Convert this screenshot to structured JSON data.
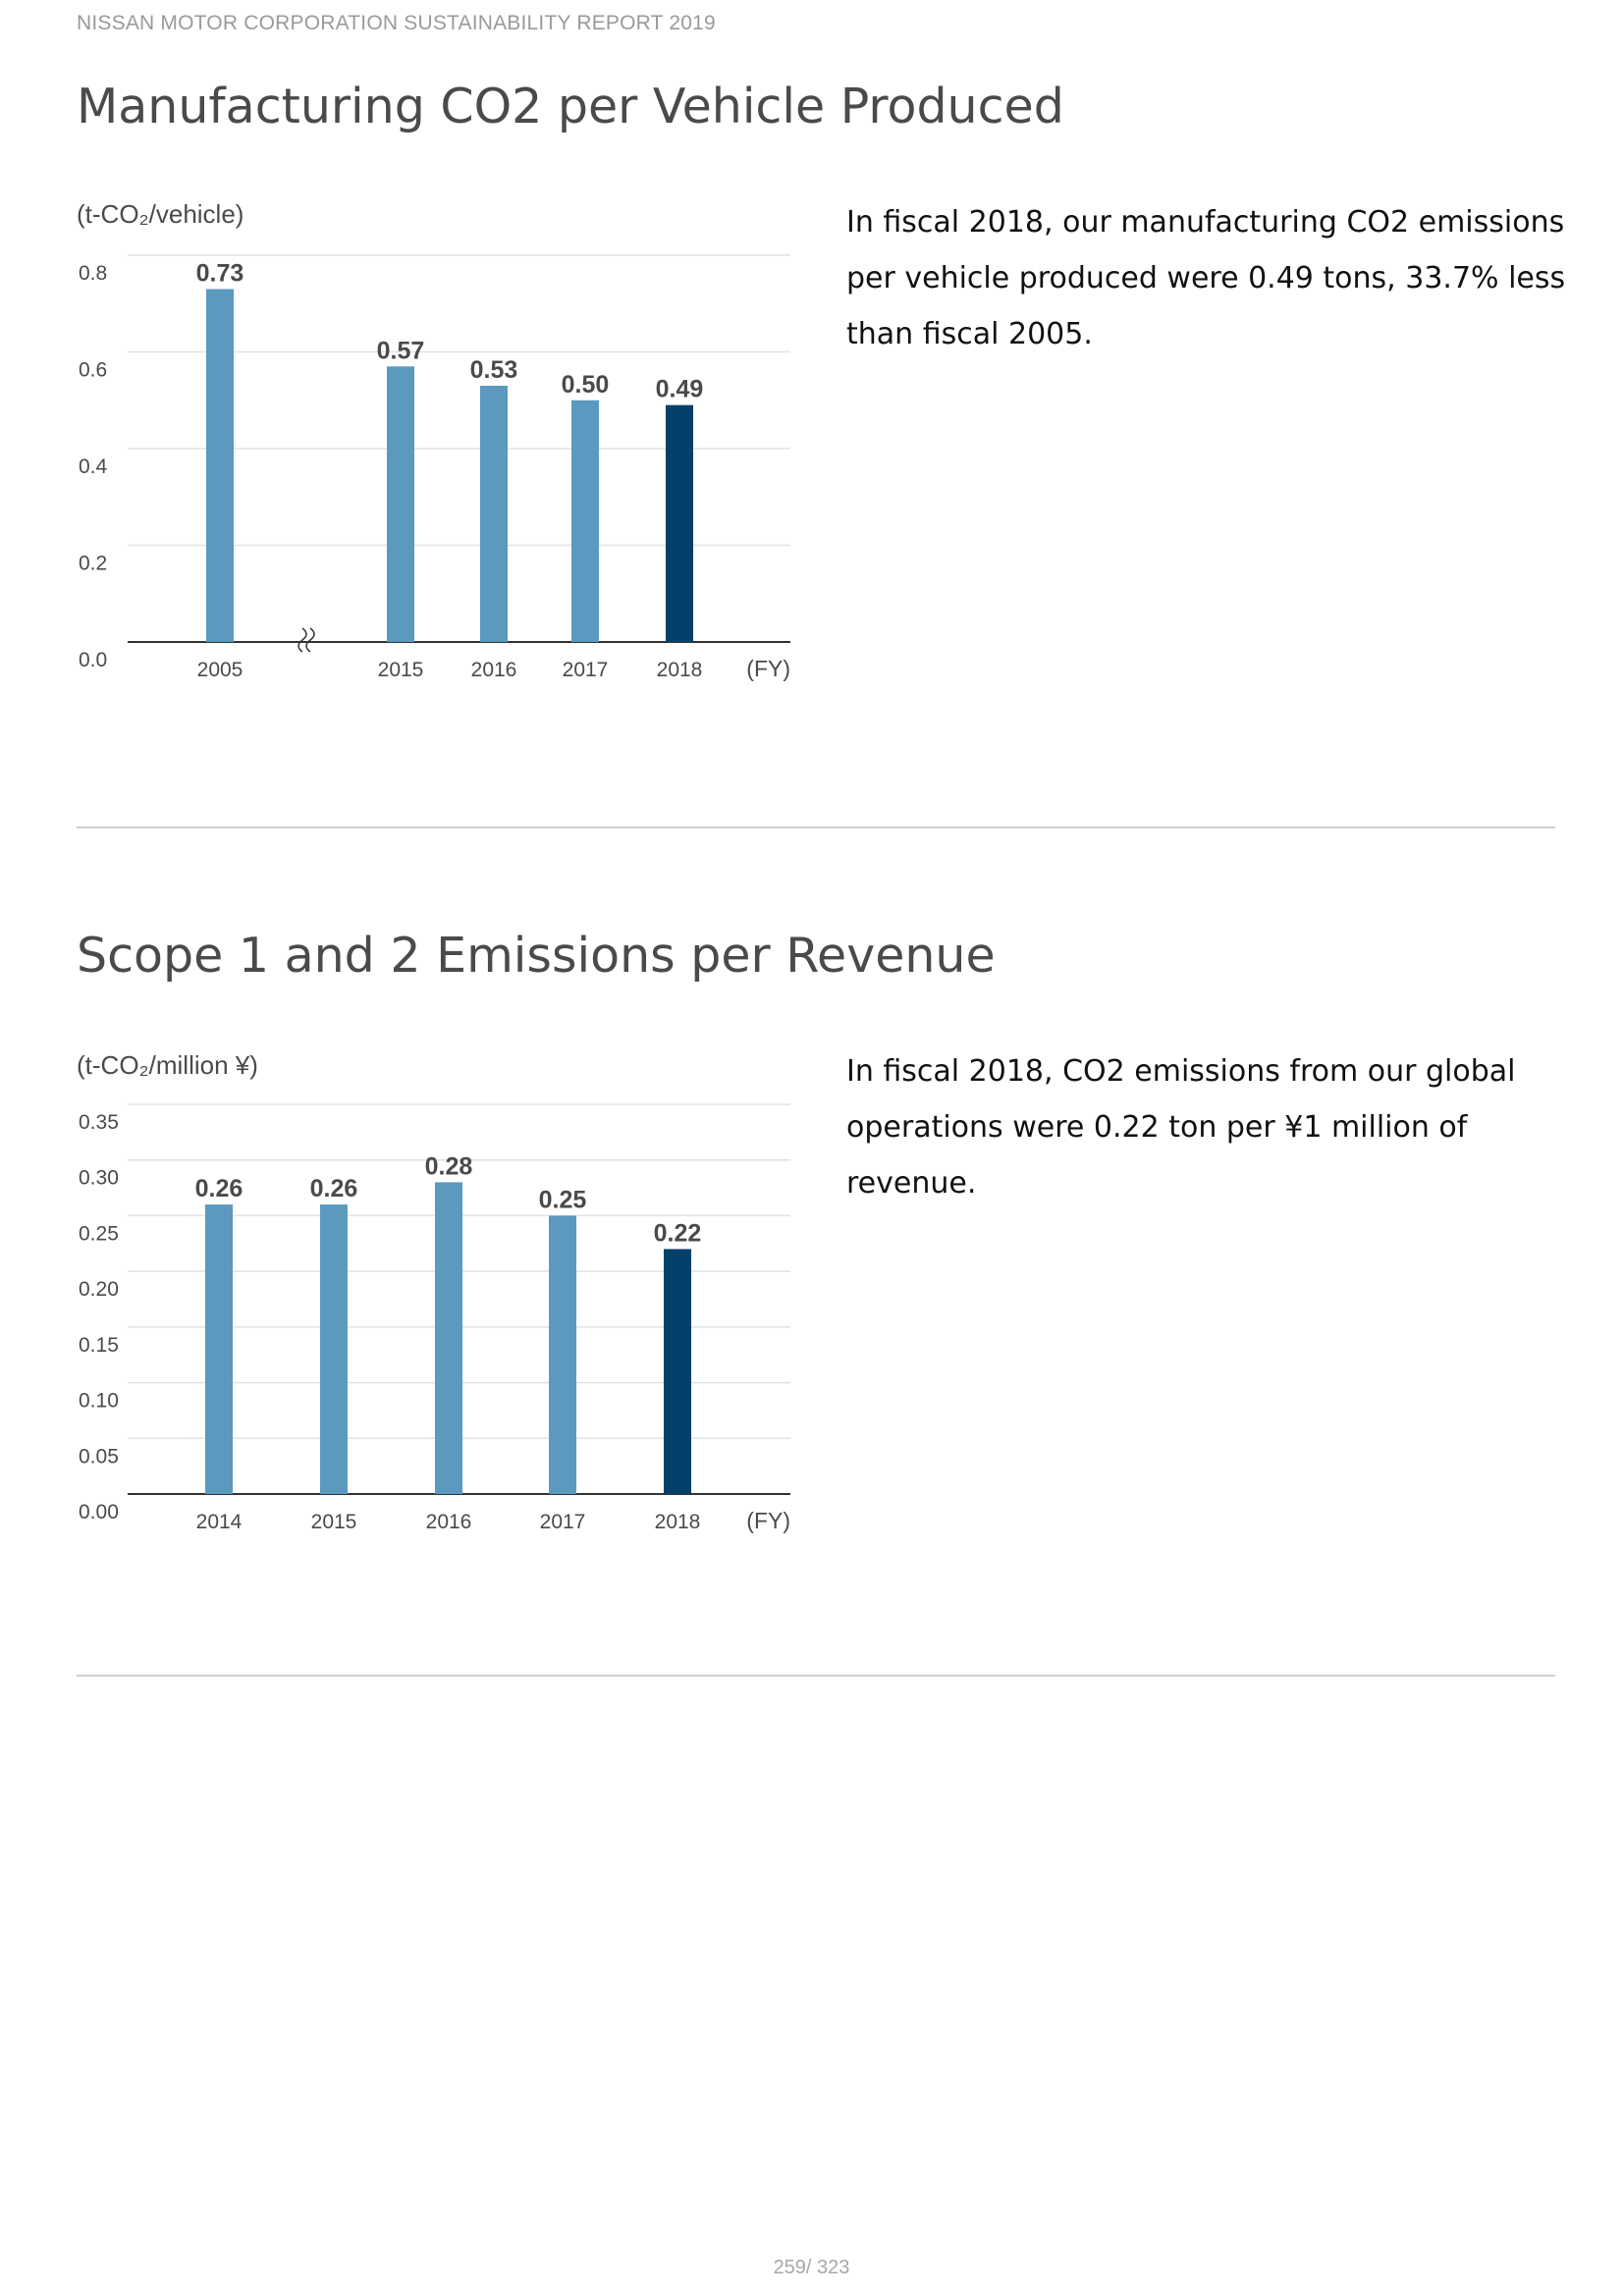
{
  "header": {
    "text": "NISSAN MOTOR CORPORATION SUSTAINABILITY REPORT 2019"
  },
  "sections": [
    {
      "title": "Manufacturing CO2 per Vehicle Produced",
      "description": "In fiscal 2018, our manufacturing CO2 emissions per vehicle produced were 0.49 tons, 33.7% less than fiscal 2005."
    },
    {
      "title": "Scope 1 and 2 Emissions per Revenue",
      "description": "In fiscal 2018, CO2 emissions from our global operations were 0.22 ton per ¥1 million of revenue."
    }
  ],
  "chart_data": [
    {
      "type": "bar",
      "title": "",
      "ylabel": "(t-CO₂/vehicle)",
      "xlabel": "(FY)",
      "categories": [
        "2005",
        "2015",
        "2016",
        "2017",
        "2018"
      ],
      "values": [
        0.73,
        0.57,
        0.53,
        0.5,
        0.49
      ],
      "value_labels": [
        "0.73",
        "0.57",
        "0.53",
        "0.50",
        "0.49"
      ],
      "yticks": [
        "0.0",
        "0.2",
        "0.4",
        "0.6",
        "0.8"
      ],
      "ylim": [
        0,
        0.8
      ],
      "axis_break_after": "2005",
      "highlight": "2018",
      "grid": true,
      "colors": {
        "bar": "#5b99bf",
        "highlight": "#04406a",
        "grid": "#e2e2e2",
        "axis": "#333333",
        "label": "#4a4a4a"
      }
    },
    {
      "type": "bar",
      "title": "",
      "ylabel": "(t-CO₂/million ¥)",
      "xlabel": "(FY)",
      "categories": [
        "2014",
        "2015",
        "2016",
        "2017",
        "2018"
      ],
      "values": [
        0.26,
        0.26,
        0.28,
        0.25,
        0.22
      ],
      "value_labels": [
        "0.26",
        "0.26",
        "0.28",
        "0.25",
        "0.22"
      ],
      "yticks": [
        "0.00",
        "0.05",
        "0.10",
        "0.15",
        "0.20",
        "0.25",
        "0.30",
        "0.35"
      ],
      "ylim": [
        0,
        0.35
      ],
      "highlight": "2018",
      "grid": true,
      "colors": {
        "bar": "#5b99bf",
        "highlight": "#04406a",
        "grid": "#e2e2e2",
        "axis": "#333333",
        "label": "#4a4a4a"
      }
    }
  ],
  "footer": {
    "page": "259/ 323"
  }
}
